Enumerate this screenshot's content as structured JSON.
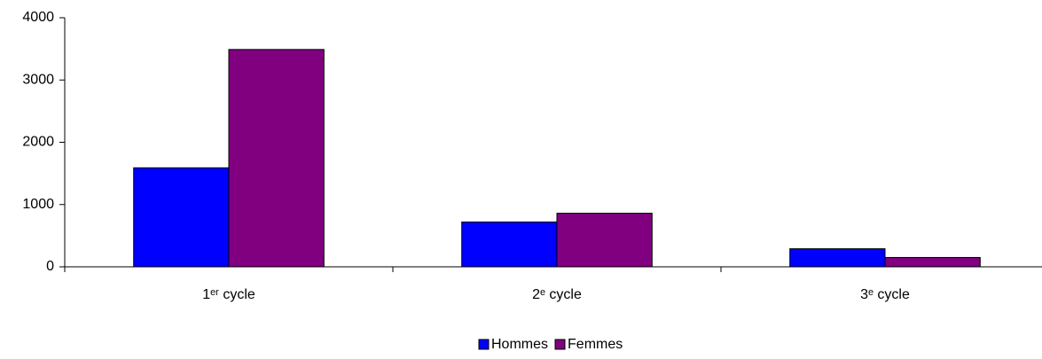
{
  "chart_data": {
    "type": "bar",
    "categories": [
      "1ᵉʳ cycle",
      "2ᵉ cycle",
      "3ᵉ cycle"
    ],
    "series": [
      {
        "name": "Hommes",
        "color": "#0000ff",
        "values": [
          1590,
          720,
          290
        ]
      },
      {
        "name": "Femmes",
        "color": "#800080",
        "values": [
          3490,
          860,
          150
        ]
      }
    ],
    "ylim": [
      0,
      4000
    ],
    "yticks": [
      0,
      1000,
      2000,
      3000,
      4000
    ],
    "grid": false,
    "legend": "bottom"
  }
}
